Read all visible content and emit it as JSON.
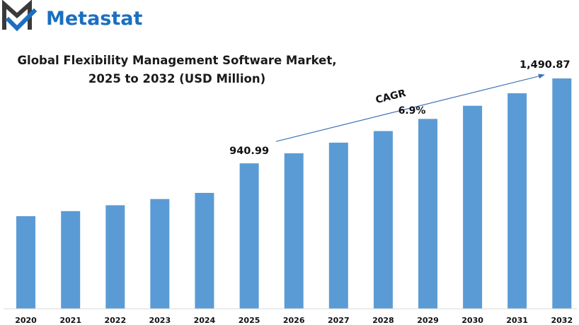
{
  "brand": {
    "name": "Metastat",
    "logo_color": "#1b6fc0",
    "mark_color": "#3a3a3a"
  },
  "chart_data": {
    "type": "bar",
    "title_lines": [
      "Global Flexibility Management Software Market,",
      "2025 to 2032 (USD Million)"
    ],
    "categories": [
      "2020",
      "2021",
      "2022",
      "2023",
      "2024",
      "2025",
      "2026",
      "2027",
      "2028",
      "2029",
      "2030",
      "2031",
      "2032"
    ],
    "values": [
      599,
      632,
      670,
      710,
      750,
      940.99,
      1006,
      1075,
      1150,
      1229,
      1314,
      1395,
      1490.87
    ],
    "value_scale_max": 1490.87,
    "bar_color": "#5b9bd5",
    "data_labels": [
      {
        "category": "2025",
        "text": "940.99"
      },
      {
        "category": "2032",
        "text": "1,490.87"
      }
    ],
    "annotation": {
      "label": "CAGR",
      "value": "6.9%",
      "from": "2025",
      "to": "2032"
    },
    "grid": false,
    "legend": "none"
  }
}
